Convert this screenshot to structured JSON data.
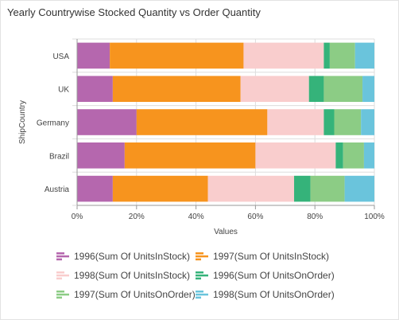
{
  "title": "Yearly Countrywise Stocked Quantity vs Order Quantity",
  "chart_data": {
    "type": "bar",
    "orientation": "horizontal",
    "stacked": "100%",
    "categories": [
      "USA",
      "UK",
      "Germany",
      "Brazil",
      "Austria"
    ],
    "xlabel": "Values",
    "ylabel": "ShipCountry",
    "xlim": [
      0,
      100
    ],
    "xticks": [
      "0%",
      "20%",
      "40%",
      "60%",
      "80%",
      "100%"
    ],
    "grid": true,
    "legend_position": "bottom",
    "series": [
      {
        "name": "1996(Sum Of UnitsInStock)",
        "color": "#b567ae",
        "values": [
          11,
          12,
          20,
          16,
          12
        ]
      },
      {
        "name": "1997(Sum Of UnitsInStock)",
        "color": "#f7941e",
        "values": [
          45,
          43,
          44,
          44,
          32
        ]
      },
      {
        "name": "1998(Sum Of UnitsInStock)",
        "color": "#f9cdcd",
        "values": [
          27,
          23,
          19,
          27,
          29
        ]
      },
      {
        "name": "1996(Sum Of UnitsOnOrder)",
        "color": "#35b37a",
        "values": [
          2,
          5,
          3.5,
          2.5,
          5.5
        ]
      },
      {
        "name": "1997(Sum Of UnitsOnOrder)",
        "color": "#8ccc85",
        "values": [
          8.5,
          13,
          9,
          7,
          11.5
        ]
      },
      {
        "name": "1998(Sum Of UnitsOnOrder)",
        "color": "#6ac4dc",
        "values": [
          6.5,
          4,
          4.5,
          3.5,
          10
        ]
      }
    ]
  }
}
